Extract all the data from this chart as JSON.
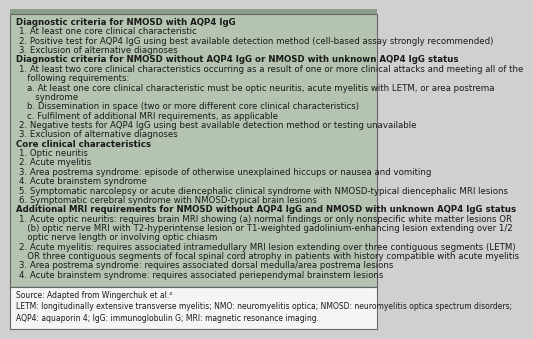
{
  "background_color": "#b5c4b1",
  "border_color": "#666666",
  "text_color": "#1a1a1a",
  "font_size": 6.2,
  "small_font_size": 5.5,
  "lines": [
    {
      "text": "Diagnostic criteria for NMOSD with AQP4 IgG",
      "indent": 0,
      "bold": true
    },
    {
      "text": "1. At least one core clinical characteristic",
      "indent": 1,
      "bold": false
    },
    {
      "text": "2. Positive test for AQP4 IgG using best available detection method (cell-based assay strongly recommended)",
      "indent": 1,
      "bold": false
    },
    {
      "text": "3. Exclusion of alternative diagnoses",
      "indent": 1,
      "bold": false
    },
    {
      "text": "Diagnostic criteria for NMOSD without AQP4 IgG or NMOSD with unknown AQP4 IgG status",
      "indent": 0,
      "bold": true
    },
    {
      "text": "1. At least two core clinical characteristics occurring as a result of one or more clinical attacks and meeting all of the",
      "indent": 1,
      "bold": false
    },
    {
      "text": "   following requirements:",
      "indent": 1,
      "bold": false
    },
    {
      "text": "a. At least one core clinical characteristic must be optic neuritis, acute myelitis with LETM, or area postrema",
      "indent": 2,
      "bold": false
    },
    {
      "text": "   syndrome",
      "indent": 2,
      "bold": false
    },
    {
      "text": "b. Dissemination in space (two or more different core clinical characteristics)",
      "indent": 2,
      "bold": false
    },
    {
      "text": "c. Fulfilment of additional MRI requirements, as applicable",
      "indent": 2,
      "bold": false
    },
    {
      "text": "2. Negative tests for AQP4 IgG using best available detection method or testing unavailable",
      "indent": 1,
      "bold": false
    },
    {
      "text": "3. Exclusion of alternative diagnoses",
      "indent": 1,
      "bold": false
    },
    {
      "text": "Core clinical characteristics",
      "indent": 0,
      "bold": true
    },
    {
      "text": "1. Optic neuritis",
      "indent": 1,
      "bold": false
    },
    {
      "text": "2. Acute myelitis",
      "indent": 1,
      "bold": false
    },
    {
      "text": "3. Area postrema syndrome: episode of otherwise unexplained hiccups or nausea and vomiting",
      "indent": 1,
      "bold": false
    },
    {
      "text": "4. Acute brainstem syndrome",
      "indent": 1,
      "bold": false
    },
    {
      "text": "5. Symptomatic narcolepsy or acute diencephalic clinical syndrome with NMOSD-typical diencephalic MRI lesions",
      "indent": 1,
      "bold": false
    },
    {
      "text": "6. Symptomatic cerebral syndrome with NMOSD-typical brain lesions",
      "indent": 1,
      "bold": false
    },
    {
      "text": "Additional MRI requirements for NMOSD without AQP4 IgG and NMOSD with unknown AQP4 IgG status",
      "indent": 0,
      "bold": true
    },
    {
      "text": "1. Acute optic neuritis: requires brain MRI showing (a) normal findings or only nonspecific white matter lesions OR",
      "indent": 1,
      "bold": false
    },
    {
      "text": "   (b) optic nerve MRI with T2-hyperintense lesion or T1-weighted gadolinium-enhancing lesion extending over 1/2",
      "indent": 1,
      "bold": false
    },
    {
      "text": "   optic nerve length or involving optic chiasm",
      "indent": 1,
      "bold": false
    },
    {
      "text": "2. Acute myelitis: requires associated intramedullary MRI lesion extending over three contiguous segments (LETM)",
      "indent": 1,
      "bold": false
    },
    {
      "text": "   OR three contiguous segments of focal spinal cord atrophy in patients with history compatible with acute myelitis",
      "indent": 1,
      "bold": false
    },
    {
      "text": "3. Area postrema syndrome: requires associated dorsal medulla/area postrema lesions",
      "indent": 1,
      "bold": false
    },
    {
      "text": "4. Acute brainstem syndrome: requires associated periependymal brainstem lesions",
      "indent": 1,
      "bold": false
    }
  ],
  "footer_lines": [
    "Source: Adapted from Wingerchuk et al.²",
    "LETM: longitudinally extensive transverse myelitis; NMO: neuromyelitis optica; NMOSD: neuromyelitis optica spectrum disorders;",
    "AQP4: aquaporin 4; IgG: immunoglobulin G; MRI: magnetic resonance imaging."
  ]
}
